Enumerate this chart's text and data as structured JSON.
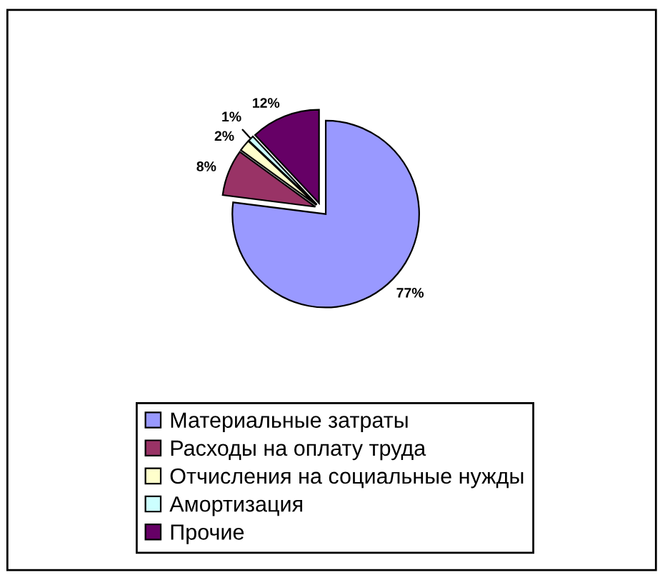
{
  "chart_data": {
    "type": "pie",
    "categories": [
      "Материальные затраты",
      "Расходы на оплату труда",
      "Отчисления на социальные нужды",
      "Амортизация",
      "Прочие"
    ],
    "values": [
      77,
      8,
      2,
      1,
      12
    ],
    "colors": [
      "#9999ff",
      "#993366",
      "#ffffcc",
      "#ccffff",
      "#660066"
    ],
    "value_labels": [
      "77%",
      "8%",
      "2%",
      "1%",
      "12%"
    ],
    "legend": "bottom"
  }
}
